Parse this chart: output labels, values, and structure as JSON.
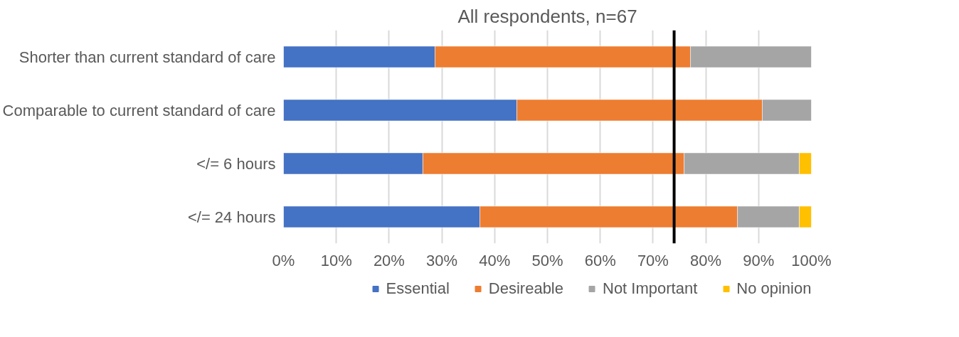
{
  "chart_data": {
    "type": "bar",
    "title": "All respondents, n=67",
    "orientation": "horizontal",
    "stacked": true,
    "categories": [
      "Shorter than current standard of care",
      "Comparable to current standard of care",
      "</= 6 hours",
      "</= 24 hours"
    ],
    "series": [
      {
        "name": "Essential",
        "color": "#4472c4",
        "values": [
          28.7,
          44.2,
          26.4,
          37.2
        ]
      },
      {
        "name": "Desireable",
        "color": "#ed7d31",
        "values": [
          48.4,
          46.5,
          49.5,
          48.8
        ]
      },
      {
        "name": "Not Important",
        "color": "#a5a5a5",
        "values": [
          22.9,
          9.3,
          21.8,
          11.7
        ]
      },
      {
        "name": "No opinion",
        "color": "#ffc000",
        "values": [
          null,
          null,
          2.3,
          2.3
        ]
      }
    ],
    "xlim": [
      0,
      100
    ],
    "xticks": [
      {
        "value": 0,
        "label": "0%"
      },
      {
        "value": 10,
        "label": "10%"
      },
      {
        "value": 20,
        "label": "20%"
      },
      {
        "value": 30,
        "label": "30%"
      },
      {
        "value": 40,
        "label": "40%"
      },
      {
        "value": 50,
        "label": "50%"
      },
      {
        "value": 60,
        "label": "60%"
      },
      {
        "value": 70,
        "label": "70%"
      },
      {
        "value": 80,
        "label": "80%"
      },
      {
        "value": 90,
        "label": "90%"
      },
      {
        "value": 100,
        "label": "100%"
      }
    ],
    "ref_lines": [
      {
        "axis": "x",
        "value": 74,
        "color": "#000000"
      }
    ],
    "grid": "x",
    "legend": "bottom"
  }
}
